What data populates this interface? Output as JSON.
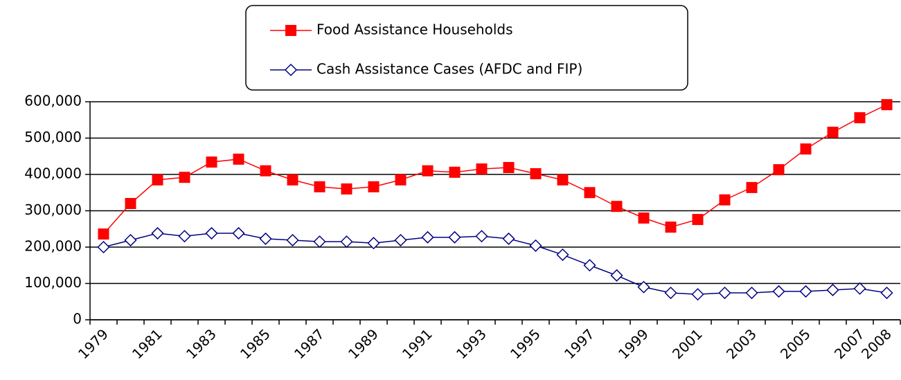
{
  "chart_data": {
    "type": "line",
    "categories": [
      "1979",
      null,
      "1981",
      null,
      "1983",
      null,
      "1985",
      null,
      "1987",
      null,
      "1989",
      null,
      "1991",
      null,
      "1993",
      null,
      "1995",
      null,
      "1997",
      null,
      "1999",
      null,
      "2001",
      null,
      "2003",
      null,
      "2005",
      null,
      "2007",
      "2008"
    ],
    "series": [
      {
        "name": "Food Assistance Households",
        "color": "#ff0000",
        "marker": "square",
        "values": [
          236000,
          320000,
          385000,
          392000,
          434000,
          442000,
          410000,
          385000,
          366000,
          360000,
          366000,
          385000,
          410000,
          406000,
          415000,
          419000,
          402000,
          385000,
          350000,
          312000,
          280000,
          255000,
          276000,
          330000,
          364000,
          413000,
          470000,
          516000,
          556000,
          592000
        ]
      },
      {
        "name": "Cash Assistance Cases (AFDC and FIP)",
        "color": "#000080",
        "marker": "diamond",
        "values": [
          200000,
          219000,
          238000,
          230000,
          238000,
          238000,
          223000,
          219000,
          215000,
          215000,
          211000,
          219000,
          227000,
          227000,
          230000,
          223000,
          204000,
          179000,
          150000,
          122000,
          90000,
          74000,
          70000,
          74000,
          74000,
          78000,
          78000,
          82000,
          86000,
          74000
        ]
      }
    ],
    "ylim": [
      0,
      600000
    ],
    "yticks": [
      0,
      {
        "value": 100000,
        "label": "100,000"
      },
      {
        "value": 200000,
        "label": "200,000"
      },
      {
        "value": 300000,
        "label": "300,000"
      },
      {
        "value": 400000,
        "label": "400,000"
      },
      {
        "value": 500000,
        "label": "500,000"
      },
      {
        "value": 600000,
        "label": "600,000"
      }
    ],
    "grid": true,
    "legend": "top"
  }
}
